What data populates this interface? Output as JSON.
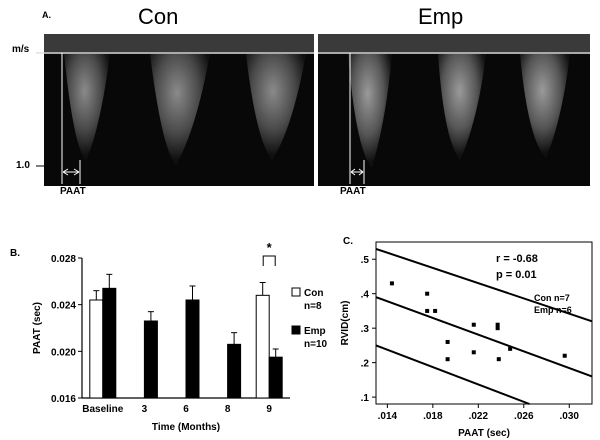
{
  "panel_a": {
    "label": "A.",
    "title_left": "Con",
    "title_right": "Emp",
    "y_unit": "m/s",
    "y_tick": "1.0",
    "marker_left": "PAAT",
    "marker_right": "PAAT"
  },
  "chart_data": [
    {
      "type": "bar",
      "panel_label": "B.",
      "title": "",
      "xlabel": "Time (Months)",
      "ylabel": "PAAT (sec)",
      "categories": [
        "Baseline",
        "3",
        "6",
        "8",
        "9"
      ],
      "ylim": [
        0.016,
        0.028
      ],
      "yticks": [
        "0.016",
        "0.020",
        "0.024",
        "0.028"
      ],
      "series": [
        {
          "name": "Con",
          "n": "n=8",
          "color": "#ffffff",
          "values": [
            0.0244,
            null,
            null,
            null,
            0.0248
          ],
          "errors": [
            0.0008,
            null,
            null,
            null,
            0.0011
          ]
        },
        {
          "name": "Emp",
          "n": "n=10",
          "color": "#000000",
          "values": [
            0.0254,
            0.0226,
            0.0244,
            0.0206,
            0.0195
          ],
          "errors": [
            0.0012,
            0.0008,
            0.0012,
            0.001,
            0.0007
          ]
        }
      ],
      "significance": {
        "category": "9",
        "symbol": "*"
      },
      "grid": false,
      "legend": "right"
    },
    {
      "type": "scatter",
      "panel_label": "C.",
      "title": "",
      "xlabel": "PAAT (sec)",
      "ylabel": "RVID(cm)",
      "xlim": [
        0.013,
        0.032
      ],
      "ylim": [
        0.08,
        0.55
      ],
      "xticks": [
        ".014",
        ".018",
        ".022",
        ".026",
        ".030"
      ],
      "yticks": [
        ".1",
        ".2",
        ".3",
        ".4",
        ".5"
      ],
      "stats": {
        "r": "r = -0.68",
        "p": "p = 0.01"
      },
      "groups": {
        "con": "Con n=7",
        "emp": "Emp n=6"
      },
      "points": [
        {
          "x": 0.0144,
          "y": 0.43
        },
        {
          "x": 0.0175,
          "y": 0.4
        },
        {
          "x": 0.0175,
          "y": 0.35
        },
        {
          "x": 0.0182,
          "y": 0.35
        },
        {
          "x": 0.0193,
          "y": 0.26
        },
        {
          "x": 0.0193,
          "y": 0.21
        },
        {
          "x": 0.0216,
          "y": 0.31
        },
        {
          "x": 0.0216,
          "y": 0.23
        },
        {
          "x": 0.0237,
          "y": 0.3
        },
        {
          "x": 0.0237,
          "y": 0.31
        },
        {
          "x": 0.0238,
          "y": 0.21
        },
        {
          "x": 0.0248,
          "y": 0.24
        },
        {
          "x": 0.0296,
          "y": 0.22
        }
      ],
      "fit": {
        "x": [
          0.013,
          0.032
        ],
        "y": [
          0.39,
          0.16
        ]
      },
      "ci_upper": {
        "x": [
          0.013,
          0.032
        ],
        "y": [
          0.53,
          0.32
        ]
      },
      "ci_lower": {
        "x": [
          0.013,
          0.0265
        ],
        "y": [
          0.25,
          0.08
        ]
      },
      "grid": false
    }
  ]
}
